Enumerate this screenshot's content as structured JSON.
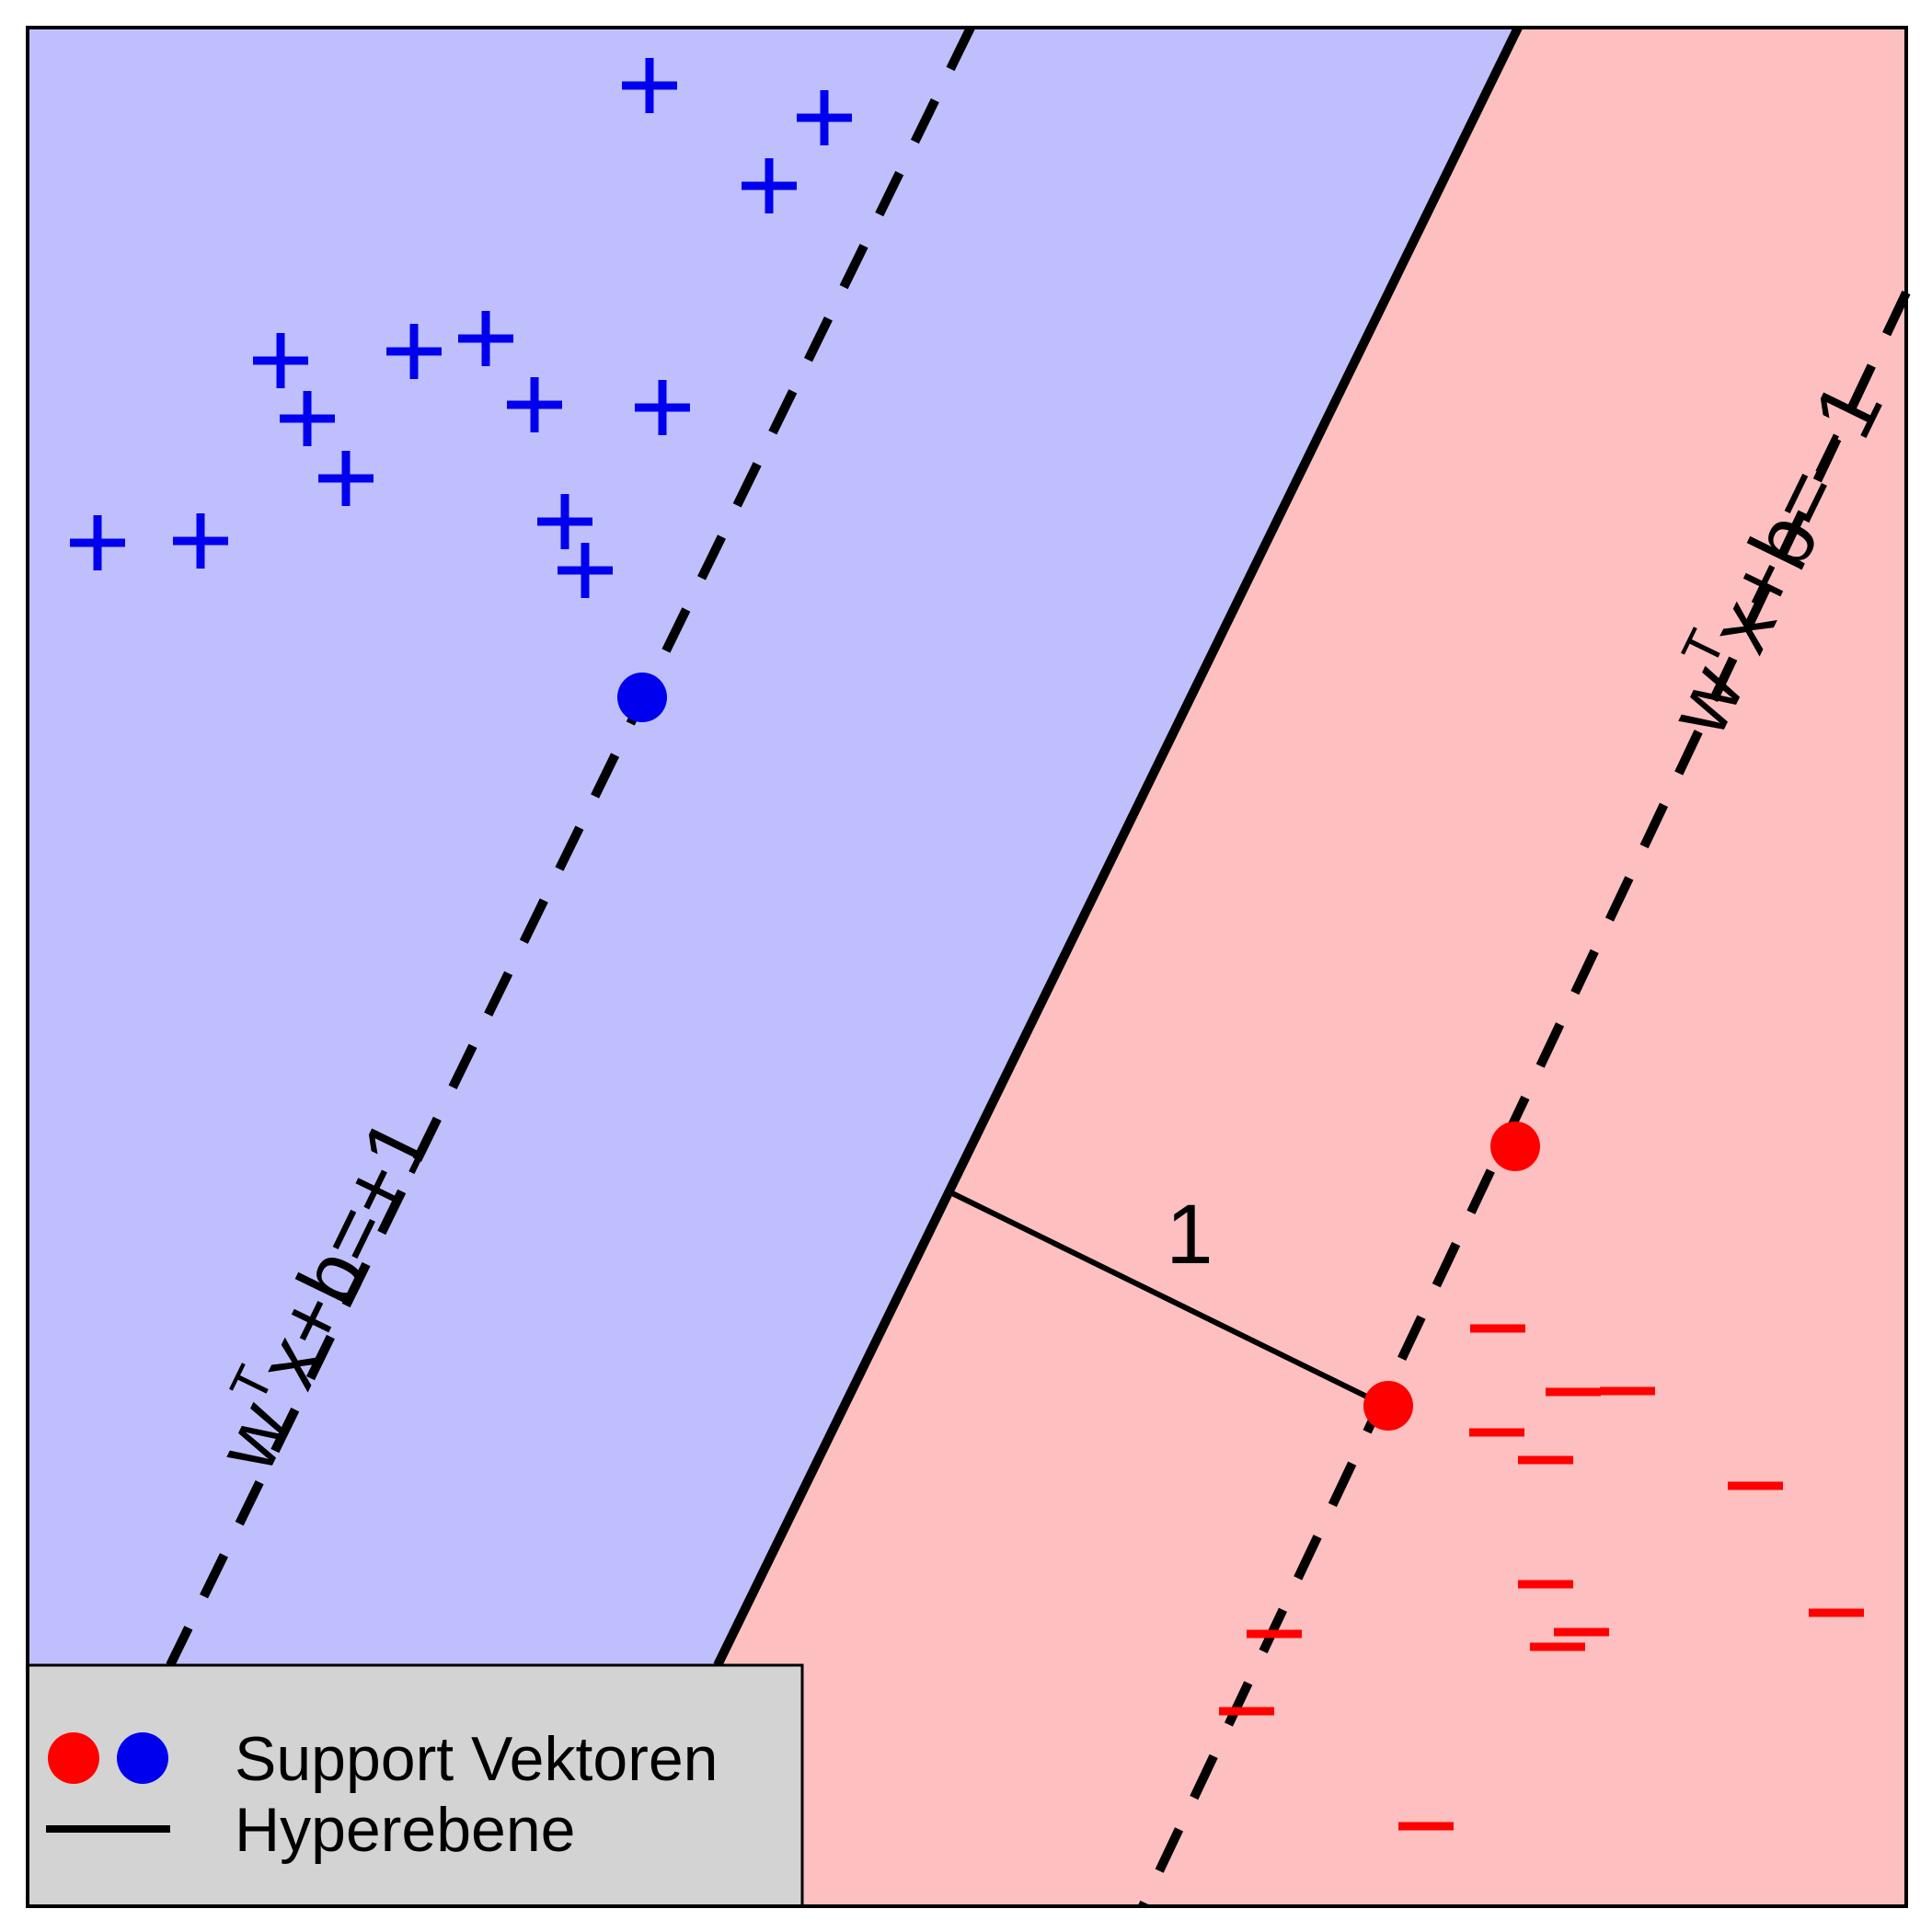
{
  "colors": {
    "positive_region": "#bfbffd",
    "negative_region": "#fdbfbf",
    "positive_marker": "#0000ee",
    "negative_marker": "#ff0000",
    "line": "#000000",
    "legend_bg": "#d3d3d3"
  },
  "labels": {
    "margin_plus": {
      "w": "w",
      "sup": "T",
      "rest": "x+b=+1"
    },
    "margin_minus": {
      "w": "w",
      "sup": "T",
      "rest": "x+b=−1"
    },
    "distance": "1"
  },
  "markers": {
    "plus_symbol": "+",
    "minus_symbol": "–"
  },
  "legend": {
    "support_vectors": "Support Vektoren",
    "hyperplane": "Hyperebene"
  },
  "icons": [
    "plus-marker-icon",
    "minus-marker-icon",
    "support-vector-dot-icon",
    "legend-line-icon"
  ]
}
